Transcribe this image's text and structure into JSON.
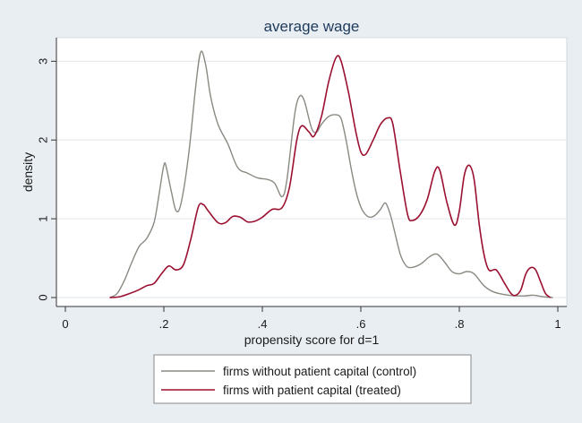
{
  "chart_data": {
    "type": "line",
    "title": "average wage",
    "xlabel": "propensity score for d=1",
    "ylabel": "density",
    "xlim": [
      0,
      1
    ],
    "ylim": [
      0,
      3.3
    ],
    "x_ticks": [
      0,
      0.2,
      0.4,
      0.6,
      0.8,
      1
    ],
    "x_tick_labels": [
      "0",
      ".2",
      ".4",
      ".6",
      ".8",
      "1"
    ],
    "y_ticks": [
      0,
      1,
      2,
      3
    ],
    "y_tick_labels": [
      "0",
      "1",
      "2",
      "3"
    ],
    "grid": true,
    "legend_position": "bottom",
    "series": [
      {
        "name": "firms without patient capital (control)",
        "color": "#8a8a82",
        "points": [
          [
            0.09,
            0.0
          ],
          [
            0.105,
            0.05
          ],
          [
            0.12,
            0.22
          ],
          [
            0.135,
            0.45
          ],
          [
            0.15,
            0.65
          ],
          [
            0.165,
            0.75
          ],
          [
            0.18,
            0.95
          ],
          [
            0.19,
            1.3
          ],
          [
            0.2,
            1.68
          ],
          [
            0.205,
            1.65
          ],
          [
            0.215,
            1.35
          ],
          [
            0.225,
            1.1
          ],
          [
            0.235,
            1.2
          ],
          [
            0.25,
            1.8
          ],
          [
            0.265,
            2.7
          ],
          [
            0.275,
            3.12
          ],
          [
            0.285,
            2.95
          ],
          [
            0.295,
            2.55
          ],
          [
            0.31,
            2.2
          ],
          [
            0.33,
            1.95
          ],
          [
            0.35,
            1.65
          ],
          [
            0.37,
            1.58
          ],
          [
            0.39,
            1.52
          ],
          [
            0.41,
            1.5
          ],
          [
            0.425,
            1.45
          ],
          [
            0.44,
            1.28
          ],
          [
            0.45,
            1.5
          ],
          [
            0.465,
            2.3
          ],
          [
            0.475,
            2.55
          ],
          [
            0.485,
            2.5
          ],
          [
            0.5,
            2.15
          ],
          [
            0.51,
            2.1
          ],
          [
            0.52,
            2.2
          ],
          [
            0.535,
            2.3
          ],
          [
            0.55,
            2.32
          ],
          [
            0.56,
            2.27
          ],
          [
            0.57,
            2.0
          ],
          [
            0.58,
            1.65
          ],
          [
            0.59,
            1.35
          ],
          [
            0.6,
            1.15
          ],
          [
            0.61,
            1.05
          ],
          [
            0.62,
            1.02
          ],
          [
            0.63,
            1.05
          ],
          [
            0.64,
            1.12
          ],
          [
            0.65,
            1.2
          ],
          [
            0.66,
            1.05
          ],
          [
            0.67,
            0.8
          ],
          [
            0.68,
            0.55
          ],
          [
            0.69,
            0.42
          ],
          [
            0.7,
            0.38
          ],
          [
            0.72,
            0.42
          ],
          [
            0.74,
            0.52
          ],
          [
            0.755,
            0.55
          ],
          [
            0.77,
            0.45
          ],
          [
            0.785,
            0.33
          ],
          [
            0.8,
            0.3
          ],
          [
            0.815,
            0.33
          ],
          [
            0.83,
            0.3
          ],
          [
            0.85,
            0.15
          ],
          [
            0.87,
            0.07
          ],
          [
            0.9,
            0.03
          ],
          [
            0.93,
            0.02
          ],
          [
            0.95,
            0.03
          ],
          [
            0.97,
            0.01
          ],
          [
            0.99,
            0.0
          ]
        ]
      },
      {
        "name": "firms with patient capital (treated)",
        "color": "#9b1030",
        "points": [
          [
            0.09,
            0.0
          ],
          [
            0.11,
            0.01
          ],
          [
            0.13,
            0.05
          ],
          [
            0.15,
            0.1
          ],
          [
            0.165,
            0.15
          ],
          [
            0.18,
            0.18
          ],
          [
            0.195,
            0.3
          ],
          [
            0.21,
            0.4
          ],
          [
            0.225,
            0.35
          ],
          [
            0.24,
            0.42
          ],
          [
            0.255,
            0.75
          ],
          [
            0.27,
            1.15
          ],
          [
            0.28,
            1.18
          ],
          [
            0.29,
            1.1
          ],
          [
            0.31,
            0.95
          ],
          [
            0.325,
            0.95
          ],
          [
            0.34,
            1.03
          ],
          [
            0.355,
            1.02
          ],
          [
            0.37,
            0.96
          ],
          [
            0.385,
            0.97
          ],
          [
            0.4,
            1.02
          ],
          [
            0.42,
            1.12
          ],
          [
            0.44,
            1.14
          ],
          [
            0.455,
            1.4
          ],
          [
            0.47,
            2.0
          ],
          [
            0.48,
            2.18
          ],
          [
            0.495,
            2.1
          ],
          [
            0.505,
            2.05
          ],
          [
            0.52,
            2.3
          ],
          [
            0.535,
            2.75
          ],
          [
            0.55,
            3.05
          ],
          [
            0.56,
            3.0
          ],
          [
            0.575,
            2.6
          ],
          [
            0.59,
            2.1
          ],
          [
            0.6,
            1.85
          ],
          [
            0.61,
            1.82
          ],
          [
            0.625,
            2.0
          ],
          [
            0.64,
            2.2
          ],
          [
            0.655,
            2.28
          ],
          [
            0.665,
            2.2
          ],
          [
            0.68,
            1.6
          ],
          [
            0.695,
            1.05
          ],
          [
            0.705,
            0.98
          ],
          [
            0.72,
            1.05
          ],
          [
            0.735,
            1.25
          ],
          [
            0.75,
            1.6
          ],
          [
            0.76,
            1.62
          ],
          [
            0.775,
            1.2
          ],
          [
            0.79,
            0.92
          ],
          [
            0.8,
            1.1
          ],
          [
            0.81,
            1.55
          ],
          [
            0.82,
            1.68
          ],
          [
            0.83,
            1.5
          ],
          [
            0.84,
            0.95
          ],
          [
            0.85,
            0.55
          ],
          [
            0.86,
            0.35
          ],
          [
            0.875,
            0.35
          ],
          [
            0.89,
            0.2
          ],
          [
            0.905,
            0.05
          ],
          [
            0.915,
            0.03
          ],
          [
            0.925,
            0.1
          ],
          [
            0.935,
            0.3
          ],
          [
            0.945,
            0.38
          ],
          [
            0.955,
            0.35
          ],
          [
            0.965,
            0.2
          ],
          [
            0.975,
            0.05
          ],
          [
            0.985,
            0.0
          ]
        ]
      }
    ]
  }
}
